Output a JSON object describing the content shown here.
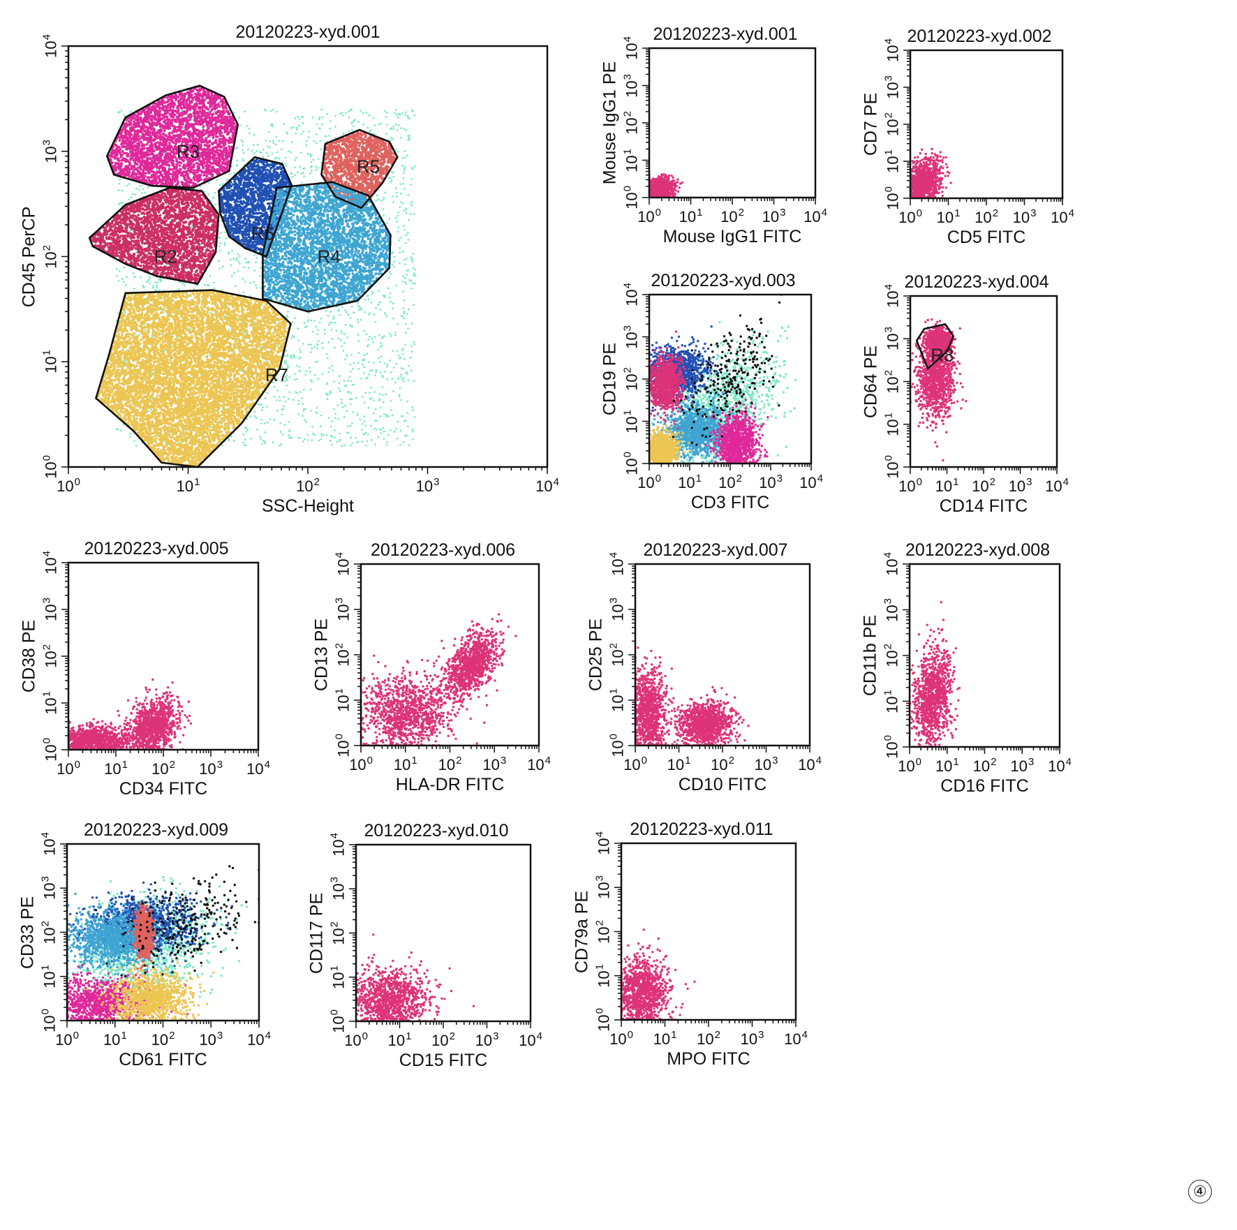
{
  "chart_data": [
    {
      "type": "scatter",
      "title": "20120223-xyd.001",
      "xlabel": "SSC-Height",
      "ylabel": "CD45 PerCP",
      "x_scale": "log",
      "y_scale": "log",
      "xlim": [
        1,
        10000
      ],
      "ylim": [
        1,
        10000
      ],
      "regions": [
        {
          "name": "R3",
          "color": "#e0289a",
          "center": [
            10,
            1000
          ],
          "polygon": [
            [
              2.1,
              900
            ],
            [
              3,
              2100
            ],
            [
              6.5,
              3400
            ],
            [
              12.5,
              4200
            ],
            [
              20,
              3300
            ],
            [
              26,
              1800
            ],
            [
              22,
              650
            ],
            [
              11,
              450
            ],
            [
              5,
              470
            ],
            [
              2.4,
              600
            ]
          ]
        },
        {
          "name": "R2",
          "color": "#cc2e63",
          "center": [
            6.5,
            100
          ],
          "polygon": [
            [
              1.5,
              150
            ],
            [
              3,
              310
            ],
            [
              7,
              450
            ],
            [
              13,
              420
            ],
            [
              18,
              250
            ],
            [
              17,
              110
            ],
            [
              12,
              55
            ],
            [
              5.5,
              65
            ],
            [
              3,
              85
            ],
            [
              1.6,
              125
            ]
          ]
        },
        {
          "name": "R6",
          "color": "#2150b4",
          "center": [
            42,
            165
          ],
          "polygon": [
            [
              18,
              420
            ],
            [
              36,
              880
            ],
            [
              61,
              760
            ],
            [
              73,
              480
            ],
            [
              60,
              250
            ],
            [
              45,
              100
            ],
            [
              30,
              120
            ],
            [
              22,
              155
            ],
            [
              18.5,
              260
            ]
          ]
        },
        {
          "name": "R5",
          "color": "#e0625f",
          "center": [
            320,
            720
          ],
          "polygon": [
            [
              140,
              1180
            ],
            [
              270,
              1600
            ],
            [
              480,
              1230
            ],
            [
              560,
              880
            ],
            [
              420,
              500
            ],
            [
              280,
              290
            ],
            [
              170,
              370
            ],
            [
              130,
              600
            ]
          ]
        },
        {
          "name": "R4",
          "color": "#3fa5d2",
          "center": [
            150,
            100
          ],
          "polygon": [
            [
              55,
              450
            ],
            [
              160,
              510
            ],
            [
              320,
              380
            ],
            [
              490,
              160
            ],
            [
              480,
              78
            ],
            [
              260,
              38
            ],
            [
              100,
              30
            ],
            [
              42,
              40
            ],
            [
              42,
              105
            ]
          ]
        },
        {
          "name": "R7",
          "color": "#ecc552",
          "center": [
            55,
            7.5
          ],
          "polygon": [
            [
              3,
              45
            ],
            [
              16,
              48
            ],
            [
              45,
              38
            ],
            [
              72,
              23
            ],
            [
              58,
              8.5
            ],
            [
              28,
              2.6
            ],
            [
              12,
              1
            ],
            [
              6,
              1.1
            ],
            [
              3.5,
              2.2
            ],
            [
              1.7,
              4.5
            ],
            [
              2.2,
              12
            ]
          ]
        }
      ],
      "background_color": "#7ee8c6"
    },
    {
      "type": "scatter",
      "title": "20120223-xyd.001",
      "xlabel": "Mouse IgG1 FITC",
      "ylabel": "Mouse IgG1 PE",
      "x_scale": "log",
      "y_scale": "log",
      "xlim": [
        1,
        10000
      ],
      "ylim": [
        1,
        10000
      ],
      "populations": [
        {
          "color": "#dd3378",
          "center": [
            1.6,
            1.6
          ],
          "spread": [
            0.2,
            0.15
          ],
          "skew": 0.15
        }
      ]
    },
    {
      "type": "scatter",
      "title": "20120223-xyd.002",
      "xlabel": "CD5 FITC",
      "ylabel": "CD7 PE",
      "x_scale": "log",
      "y_scale": "log",
      "xlim": [
        1,
        10000
      ],
      "ylim": [
        1,
        10000
      ],
      "populations": [
        {
          "color": "#dd3378",
          "center": [
            2,
            2.5
          ],
          "spread": [
            0.25,
            0.3
          ],
          "skew": 0.4
        }
      ]
    },
    {
      "type": "scatter",
      "title": "20120223-xyd.003",
      "xlabel": "CD3 FITC",
      "ylabel": "CD19 PE",
      "x_scale": "log",
      "y_scale": "log",
      "xlim": [
        1,
        10000
      ],
      "ylim": [
        1,
        10000
      ],
      "populations": [
        {
          "color": "#7ee8c6",
          "center": [
            60,
            20
          ],
          "spread": [
            0.7,
            0.65
          ],
          "skew": 0.5
        },
        {
          "color": "#2150b4",
          "center": [
            5,
            150
          ],
          "spread": [
            0.35,
            0.3
          ],
          "skew": 0
        },
        {
          "color": "#3fa5d2",
          "center": [
            15,
            6
          ],
          "spread": [
            0.4,
            0.3
          ],
          "skew": 0
        },
        {
          "color": "#e0289a",
          "center": [
            150,
            3
          ],
          "spread": [
            0.25,
            0.35
          ],
          "skew": 0
        },
        {
          "color": "#dd3378",
          "center": [
            2.5,
            80
          ],
          "spread": [
            0.2,
            0.3
          ],
          "skew": 0
        },
        {
          "color": "#ecc552",
          "center": [
            2,
            2
          ],
          "spread": [
            0.2,
            0.2
          ],
          "skew": 0
        },
        {
          "color": "#111111",
          "center": [
            80,
            90
          ],
          "spread": [
            0.55,
            0.55
          ],
          "skew": 0.6
        }
      ]
    },
    {
      "type": "scatter",
      "title": "20120223-xyd.004",
      "xlabel": "CD14 FITC",
      "ylabel": "CD64 PE",
      "x_scale": "log",
      "y_scale": "log",
      "xlim": [
        1,
        10000
      ],
      "ylim": [
        1,
        10000
      ],
      "populations": [
        {
          "color": "#dd3378",
          "center": [
            5,
            120
          ],
          "spread": [
            0.25,
            0.45
          ],
          "skew": 0
        },
        {
          "color": "#dd3378",
          "center": [
            6,
            900
          ],
          "spread": [
            0.15,
            0.12
          ],
          "skew": 0
        }
      ],
      "regions": [
        {
          "name": "R8",
          "center": [
            7.5,
            420
          ],
          "polygon": [
            [
              1.5,
              900
            ],
            [
              2.4,
              1700
            ],
            [
              9,
              2200
            ],
            [
              15,
              1150
            ],
            [
              10,
              500
            ],
            [
              3,
              200
            ]
          ]
        }
      ]
    },
    {
      "type": "scatter",
      "title": "20120223-xyd.005",
      "xlabel": "CD34 FITC",
      "ylabel": "CD38 PE",
      "x_scale": "log",
      "y_scale": "log",
      "xlim": [
        1,
        10000
      ],
      "ylim": [
        1,
        10000
      ],
      "populations": [
        {
          "color": "#dd3378",
          "center": [
            3,
            1.6
          ],
          "spread": [
            0.45,
            0.15
          ],
          "skew": 0
        },
        {
          "color": "#dd3378",
          "center": [
            60,
            3
          ],
          "spread": [
            0.25,
            0.3
          ],
          "skew": 0.3
        }
      ]
    },
    {
      "type": "scatter",
      "title": "20120223-xyd.006",
      "xlabel": "HLA-DR FITC",
      "ylabel": "CD13 PE",
      "x_scale": "log",
      "y_scale": "log",
      "xlim": [
        1,
        10000
      ],
      "ylim": [
        1,
        10000
      ],
      "populations": [
        {
          "color": "#dd3378",
          "center": [
            300,
            60
          ],
          "spread": [
            0.3,
            0.3
          ],
          "skew": 0.6
        },
        {
          "color": "#dd3378",
          "center": [
            10,
            5
          ],
          "spread": [
            0.5,
            0.4
          ],
          "skew": 0
        }
      ]
    },
    {
      "type": "scatter",
      "title": "20120223-xyd.007",
      "xlabel": "CD10 FITC",
      "ylabel": "CD25 PE",
      "x_scale": "log",
      "y_scale": "log",
      "xlim": [
        1,
        10000
      ],
      "ylim": [
        1,
        10000
      ],
      "populations": [
        {
          "color": "#dd3378",
          "center": [
            2,
            5
          ],
          "spread": [
            0.2,
            0.5
          ],
          "skew": 0
        },
        {
          "color": "#dd3378",
          "center": [
            40,
            3
          ],
          "spread": [
            0.3,
            0.25
          ],
          "skew": 0
        }
      ]
    },
    {
      "type": "scatter",
      "title": "20120223-xyd.008",
      "xlabel": "CD16 FITC",
      "ylabel": "CD11b PE",
      "x_scale": "log",
      "y_scale": "log",
      "xlim": [
        1,
        10000
      ],
      "ylim": [
        1,
        10000
      ],
      "populations": [
        {
          "color": "#dd3378",
          "center": [
            4,
            12
          ],
          "spread": [
            0.25,
            0.55
          ],
          "skew": 0.4
        }
      ]
    },
    {
      "type": "scatter",
      "title": "20120223-xyd.009",
      "xlabel": "CD61 FITC",
      "ylabel": "CD33 PE",
      "x_scale": "log",
      "y_scale": "log",
      "xlim": [
        1,
        10000
      ],
      "ylim": [
        1,
        10000
      ],
      "populations": [
        {
          "color": "#7ee8c6",
          "center": [
            40,
            50
          ],
          "spread": [
            0.7,
            0.55
          ],
          "skew": 0.2
        },
        {
          "color": "#2150b4",
          "center": [
            40,
            150
          ],
          "spread": [
            0.55,
            0.3
          ],
          "skew": 0
        },
        {
          "color": "#3fa5d2",
          "center": [
            8,
            70
          ],
          "spread": [
            0.45,
            0.3
          ],
          "skew": 0
        },
        {
          "color": "#e0289a",
          "center": [
            5,
            2.5
          ],
          "spread": [
            0.5,
            0.3
          ],
          "skew": 0
        },
        {
          "color": "#ecc552",
          "center": [
            60,
            3
          ],
          "spread": [
            0.4,
            0.3
          ],
          "skew": 0
        },
        {
          "color": "#e0625f",
          "center": [
            40,
            100
          ],
          "spread": [
            0.08,
            0.25
          ],
          "skew": 0
        },
        {
          "color": "#111111",
          "center": [
            300,
            150
          ],
          "spread": [
            0.7,
            0.5
          ],
          "skew": 0.3
        }
      ]
    },
    {
      "type": "scatter",
      "title": "20120223-xyd.010",
      "xlabel": "CD15 FITC",
      "ylabel": "CD117 PE",
      "x_scale": "log",
      "y_scale": "log",
      "xlim": [
        1,
        10000
      ],
      "ylim": [
        1,
        10000
      ],
      "populations": [
        {
          "color": "#dd3378",
          "center": [
            6,
            3
          ],
          "spread": [
            0.45,
            0.35
          ],
          "skew": 0
        }
      ]
    },
    {
      "type": "scatter",
      "title": "20120223-xyd.011",
      "xlabel": "MPO FITC",
      "ylabel": "CD79a PE",
      "x_scale": "log",
      "y_scale": "log",
      "xlim": [
        1,
        10000
      ],
      "ylim": [
        1,
        10000
      ],
      "populations": [
        {
          "color": "#dd3378",
          "center": [
            3,
            4
          ],
          "spread": [
            0.3,
            0.4
          ],
          "skew": 0
        }
      ]
    }
  ],
  "tick_base": "10",
  "tick_exponents": [
    "0",
    "1",
    "2",
    "3",
    "4"
  ],
  "panel_number": "④"
}
